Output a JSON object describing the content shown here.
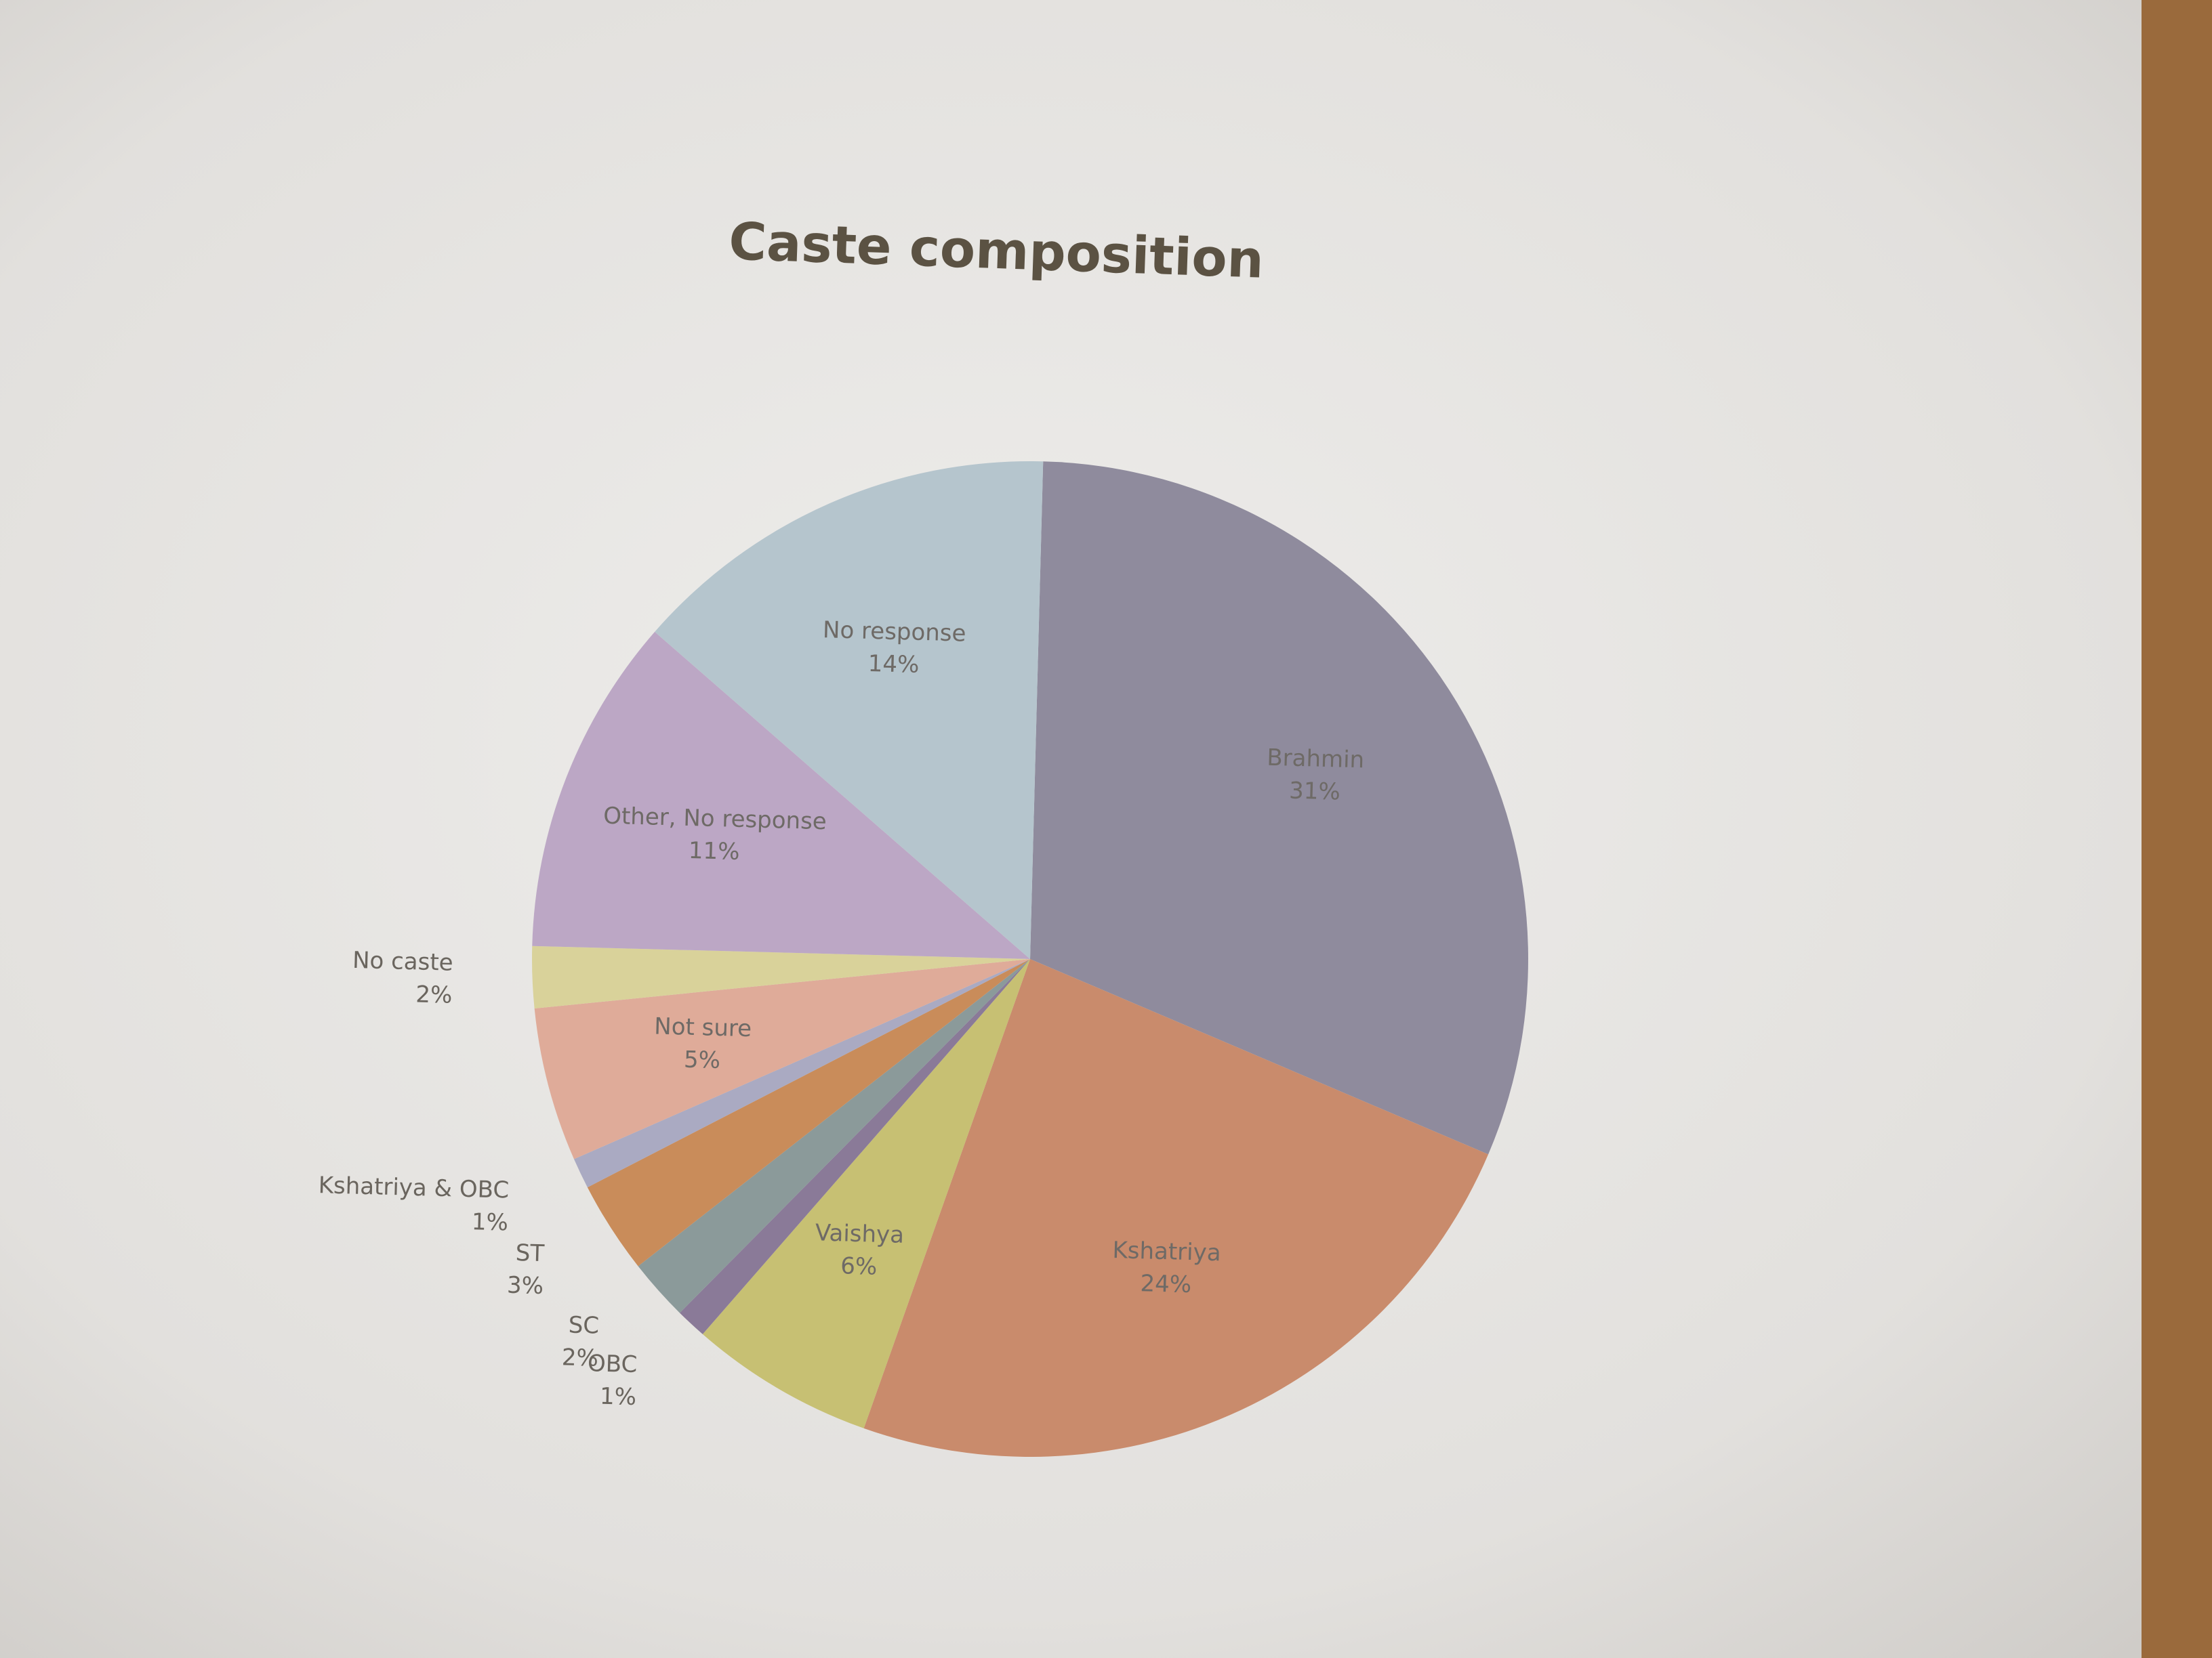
{
  "chart_data": {
    "type": "pie",
    "title": "Caste composition",
    "categories": [
      "Brahmin",
      "Kshatriya",
      "Vaishya",
      "OBC",
      "SC",
      "ST",
      "Kshatriya & OBC",
      "Not sure",
      "No caste",
      "Other, No response",
      "No response"
    ],
    "values": [
      31,
      24,
      6,
      1,
      2,
      3,
      1,
      5,
      2,
      11,
      14
    ],
    "value_labels": [
      "31%",
      "24%",
      "6%",
      "1%",
      "2%",
      "3%",
      "1%",
      "5%",
      "2%",
      "11%",
      "14%"
    ],
    "colors": [
      "#8f8b9d",
      "#c98b6c",
      "#c7c073",
      "#8a7a98",
      "#8b9a9a",
      "#c98c5a",
      "#aaaac2",
      "#dfab99",
      "#d9d29a",
      "#bca7c5",
      "#b5c5cd"
    ]
  }
}
